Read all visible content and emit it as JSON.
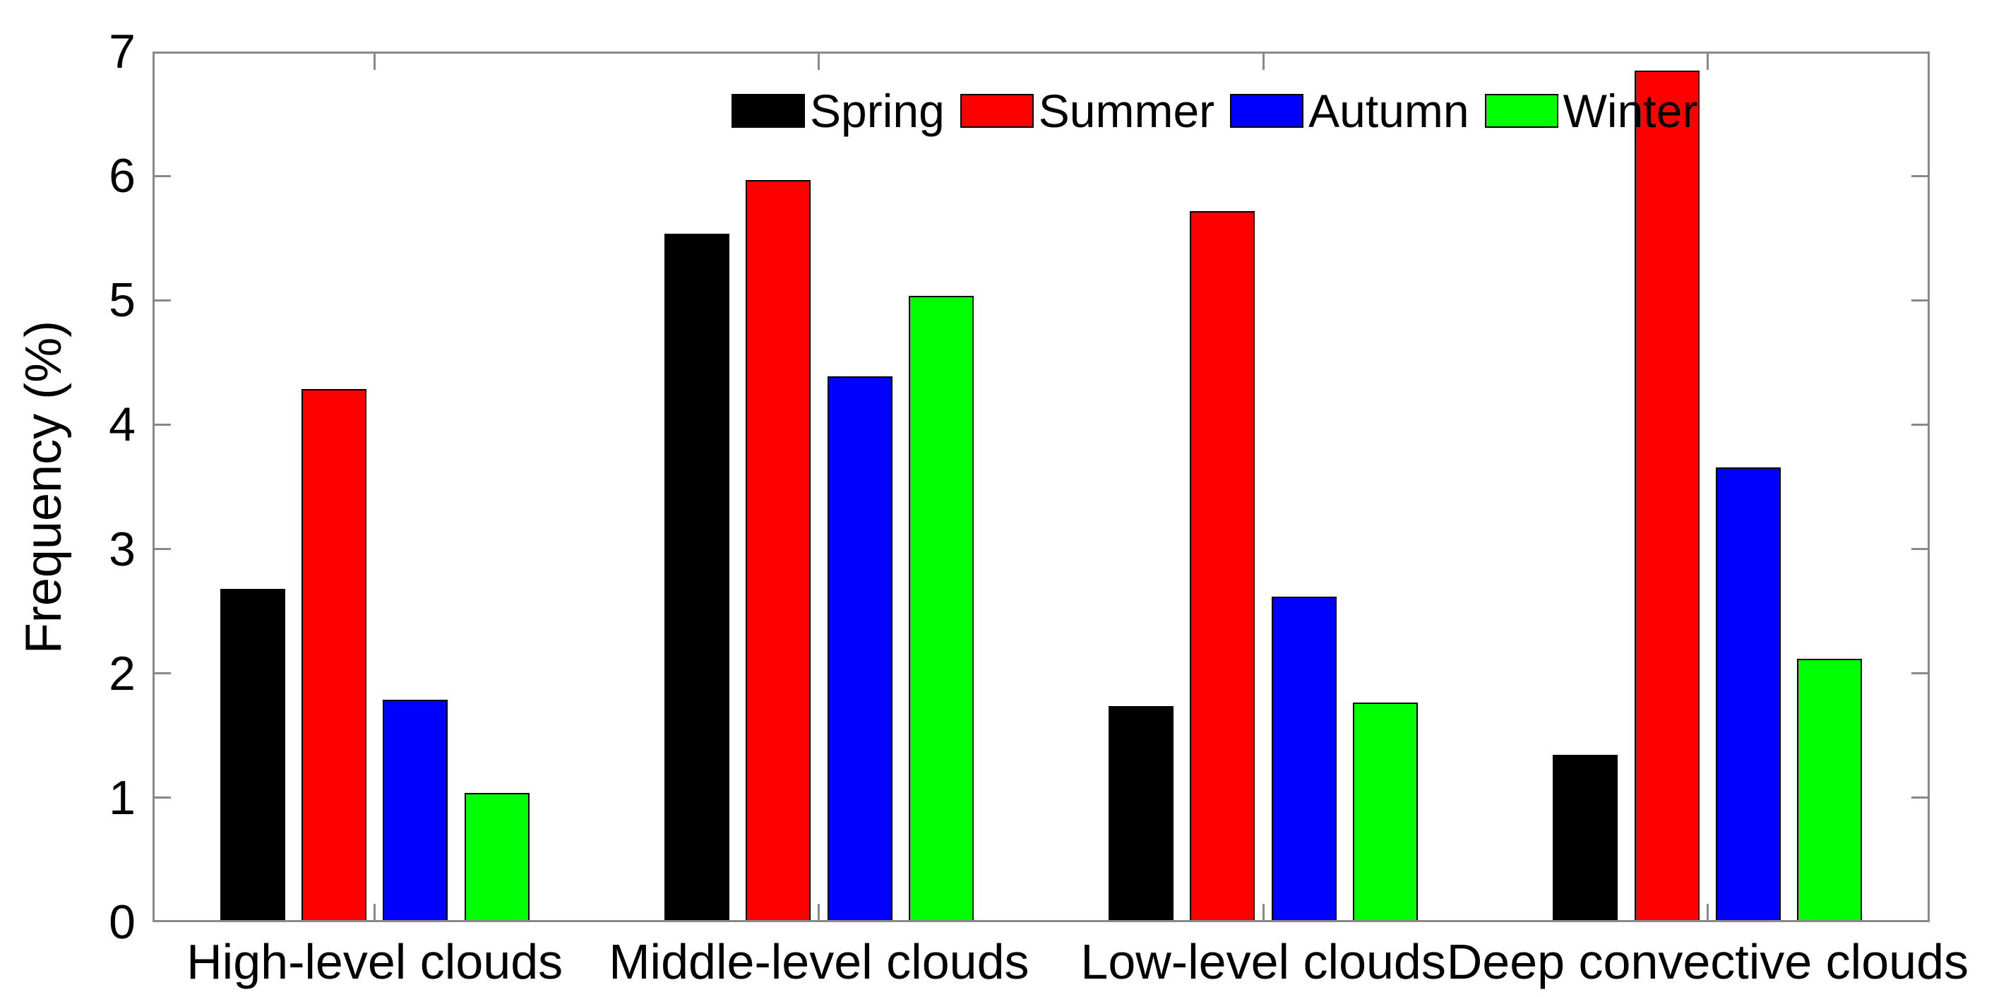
{
  "chart_data": {
    "type": "bar",
    "title": "",
    "ylabel": "Frequency (%)",
    "xlabel": "",
    "categories": [
      "High-level clouds",
      "Middle-level clouds",
      "Low-level clouds",
      "Deep convective clouds"
    ],
    "series": [
      {
        "name": "Spring",
        "color": "#000000",
        "values": [
          2.66,
          5.52,
          1.72,
          1.33
        ]
      },
      {
        "name": "Summer",
        "color": "#ff0000",
        "values": [
          4.27,
          5.95,
          5.7,
          6.83
        ]
      },
      {
        "name": "Autumn",
        "color": "#0000ff",
        "values": [
          1.77,
          4.37,
          2.6,
          3.64
        ]
      },
      {
        "name": "Winter",
        "color": "#00ff00",
        "values": [
          1.02,
          5.02,
          1.75,
          2.1
        ]
      }
    ],
    "ylim": [
      0,
      7
    ],
    "yticks": [
      0,
      1,
      2,
      3,
      4,
      5,
      6,
      7
    ],
    "grid": false,
    "legend_position": "top-inside",
    "axis_color": "#898989",
    "text_color": "#000000",
    "background_color": "#ffffff"
  }
}
